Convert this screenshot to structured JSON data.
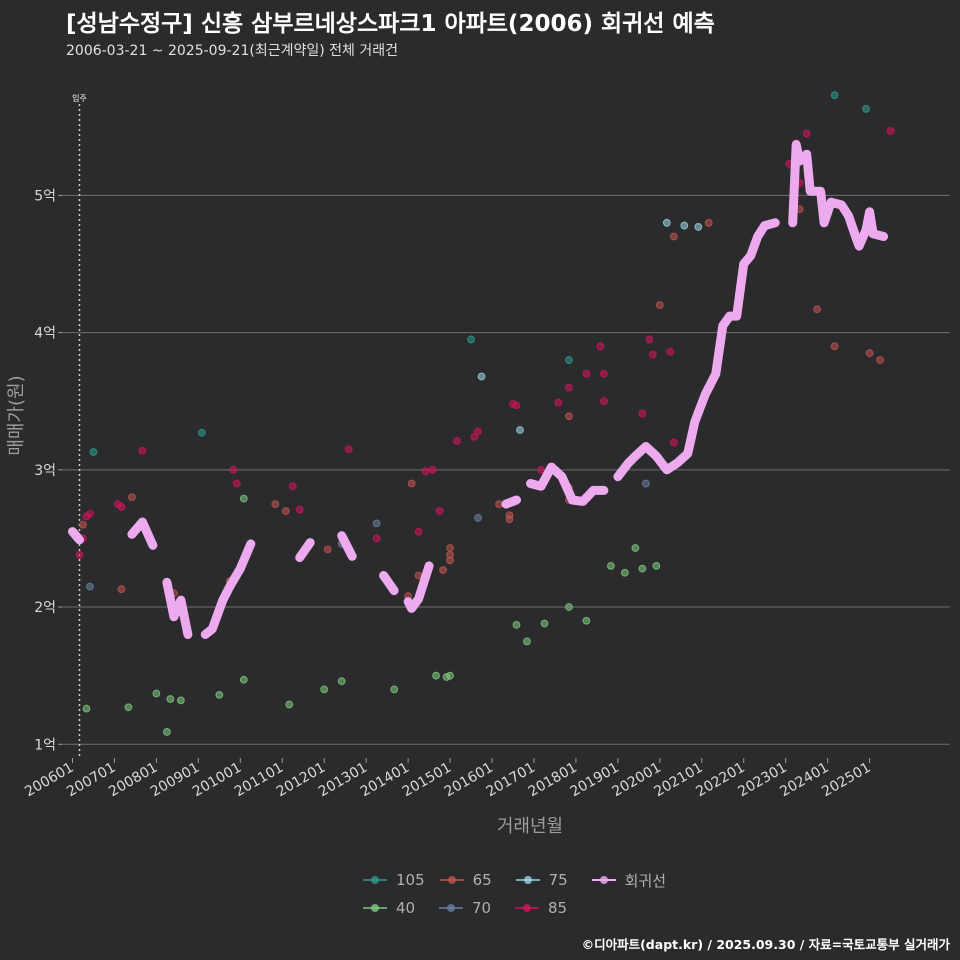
{
  "header": {
    "title": "[성남수정구] 신흥 삼부르네상스파크1 아파트(2006) 회귀선 예측",
    "subtitle": "2006-03-21 ~ 2025-09-21(최근계약일) 전체 거래건",
    "caption": "©디아파트(dapt.kr) / 2025.09.30 / 자료=국토교통부 실거래가"
  },
  "chart_data": {
    "type": "scatter",
    "title": "[성남수정구] 신흥 삼부르네상스파크1 아파트(2006) 회귀선 예측",
    "subtitle": "2006-03-21 ~ 2025-09-21(최근계약일) 전체 거래건",
    "xlabel": "거래년월",
    "ylabel": "매매가(원)",
    "xlim": [
      "2005-10",
      "2026-12"
    ],
    "ylim": [
      0.9,
      5.95
    ],
    "y_unit": "억",
    "x_ticks": [
      "200601",
      "200701",
      "200801",
      "200901",
      "201001",
      "201101",
      "201201",
      "201301",
      "201401",
      "201501",
      "201601",
      "201701",
      "201801",
      "201901",
      "202001",
      "202101",
      "202201",
      "202301",
      "202401",
      "202501"
    ],
    "y_ticks": [
      {
        "value": 1,
        "label": "1억"
      },
      {
        "value": 2,
        "label": "2억"
      },
      {
        "value": 3,
        "label": "3억"
      },
      {
        "value": 4,
        "label": "4억"
      },
      {
        "value": 5,
        "label": "5억"
      }
    ],
    "grid": true,
    "legend_position": "bottom",
    "annotation": {
      "x": "2006-03",
      "label": "입주"
    },
    "colors": {
      "105": "#2a9d8f",
      "40": "#7fc97f",
      "65": "#c1554f",
      "70": "#6a7fa3",
      "75": "#9fd6e3",
      "85": "#d4145a",
      "회귀선": "#eeaaee"
    },
    "legend": [
      {
        "key": "105",
        "label": "105",
        "kind": "point"
      },
      {
        "key": "40",
        "label": "40",
        "kind": "point"
      },
      {
        "key": "65",
        "label": "65",
        "kind": "point"
      },
      {
        "key": "70",
        "label": "70",
        "kind": "point"
      },
      {
        "key": "75",
        "label": "75",
        "kind": "point"
      },
      {
        "key": "85",
        "label": "85",
        "kind": "point"
      },
      {
        "key": "회귀선",
        "label": "회귀선",
        "kind": "line"
      }
    ],
    "series": [
      {
        "name": "105",
        "points": [
          {
            "x": "2006-07",
            "y": 3.13
          },
          {
            "x": "2015-07",
            "y": 3.95
          },
          {
            "x": "2024-03",
            "y": 5.73
          },
          {
            "x": "2024-12",
            "y": 5.63
          },
          {
            "x": "2017-11",
            "y": 3.8
          },
          {
            "x": "2009-02",
            "y": 3.27
          }
        ]
      },
      {
        "name": "40",
        "points": [
          {
            "x": "2006-05",
            "y": 1.26
          },
          {
            "x": "2007-05",
            "y": 1.27
          },
          {
            "x": "2008-01",
            "y": 1.37
          },
          {
            "x": "2008-05",
            "y": 1.33
          },
          {
            "x": "2008-08",
            "y": 1.32
          },
          {
            "x": "2008-04",
            "y": 1.09
          },
          {
            "x": "2009-07",
            "y": 1.36
          },
          {
            "x": "2010-02",
            "y": 1.47
          },
          {
            "x": "2011-03",
            "y": 1.29
          },
          {
            "x": "2012-01",
            "y": 1.4
          },
          {
            "x": "2012-06",
            "y": 1.46
          },
          {
            "x": "2013-09",
            "y": 1.4
          },
          {
            "x": "2014-09",
            "y": 1.5
          },
          {
            "x": "2014-12",
            "y": 1.49
          },
          {
            "x": "2015-01",
            "y": 1.5
          },
          {
            "x": "2016-08",
            "y": 1.87
          },
          {
            "x": "2016-11",
            "y": 1.75
          },
          {
            "x": "2017-04",
            "y": 1.88
          },
          {
            "x": "2017-11",
            "y": 2.0
          },
          {
            "x": "2018-04",
            "y": 1.9
          },
          {
            "x": "2018-11",
            "y": 2.3
          },
          {
            "x": "2019-03",
            "y": 2.25
          },
          {
            "x": "2019-06",
            "y": 2.43
          },
          {
            "x": "2019-08",
            "y": 2.28
          },
          {
            "x": "2019-12",
            "y": 2.3
          },
          {
            "x": "2010-02",
            "y": 2.79
          }
        ]
      },
      {
        "name": "65",
        "points": [
          {
            "x": "2006-04",
            "y": 2.6
          },
          {
            "x": "2007-03",
            "y": 2.13
          },
          {
            "x": "2007-06",
            "y": 2.8
          },
          {
            "x": "2008-06",
            "y": 2.1
          },
          {
            "x": "2008-06",
            "y": 2.0
          },
          {
            "x": "2009-10",
            "y": 2.19
          },
          {
            "x": "2010-11",
            "y": 2.75
          },
          {
            "x": "2011-02",
            "y": 2.7
          },
          {
            "x": "2012-02",
            "y": 2.42
          },
          {
            "x": "2014-01",
            "y": 2.08
          },
          {
            "x": "2014-04",
            "y": 2.23
          },
          {
            "x": "2014-02",
            "y": 2.9
          },
          {
            "x": "2014-11",
            "y": 2.27
          },
          {
            "x": "2015-01",
            "y": 2.43
          },
          {
            "x": "2015-01",
            "y": 2.38
          },
          {
            "x": "2015-01",
            "y": 2.34
          },
          {
            "x": "2016-03",
            "y": 2.75
          },
          {
            "x": "2016-06",
            "y": 2.64
          },
          {
            "x": "2016-06",
            "y": 2.67
          },
          {
            "x": "2017-06",
            "y": 3.0
          },
          {
            "x": "2017-11",
            "y": 2.87
          },
          {
            "x": "2017-11",
            "y": 2.78
          },
          {
            "x": "2017-11",
            "y": 3.39
          },
          {
            "x": "2020-01",
            "y": 4.2
          },
          {
            "x": "2020-05",
            "y": 4.7
          },
          {
            "x": "2021-03",
            "y": 4.8
          },
          {
            "x": "2023-10",
            "y": 4.17
          },
          {
            "x": "2024-03",
            "y": 3.9
          },
          {
            "x": "2025-01",
            "y": 3.85
          },
          {
            "x": "2025-04",
            "y": 3.8
          },
          {
            "x": "2023-05",
            "y": 4.9
          }
        ]
      },
      {
        "name": "70",
        "points": [
          {
            "x": "2006-06",
            "y": 2.15
          },
          {
            "x": "2013-04",
            "y": 2.61
          },
          {
            "x": "2015-09",
            "y": 2.65
          },
          {
            "x": "2019-09",
            "y": 2.9
          },
          {
            "x": "2012-06",
            "y": 2.46
          }
        ]
      },
      {
        "name": "75",
        "points": [
          {
            "x": "2016-09",
            "y": 3.29
          },
          {
            "x": "2020-03",
            "y": 4.8
          },
          {
            "x": "2020-08",
            "y": 4.78
          },
          {
            "x": "2020-12",
            "y": 4.77
          },
          {
            "x": "2015-10",
            "y": 3.68
          }
        ]
      },
      {
        "name": "85",
        "points": [
          {
            "x": "2006-05",
            "y": 2.66
          },
          {
            "x": "2006-06",
            "y": 2.68
          },
          {
            "x": "2006-04",
            "y": 2.5
          },
          {
            "x": "2006-03",
            "y": 2.38
          },
          {
            "x": "2007-02",
            "y": 2.75
          },
          {
            "x": "2007-03",
            "y": 2.73
          },
          {
            "x": "2007-09",
            "y": 3.14
          },
          {
            "x": "2009-11",
            "y": 3.0
          },
          {
            "x": "2009-12",
            "y": 2.9
          },
          {
            "x": "2011-04",
            "y": 2.88
          },
          {
            "x": "2011-06",
            "y": 2.71
          },
          {
            "x": "2012-08",
            "y": 3.15
          },
          {
            "x": "2013-04",
            "y": 2.5
          },
          {
            "x": "2014-04",
            "y": 2.55
          },
          {
            "x": "2014-06",
            "y": 2.99
          },
          {
            "x": "2014-08",
            "y": 3.0
          },
          {
            "x": "2014-10",
            "y": 2.7
          },
          {
            "x": "2015-03",
            "y": 3.21
          },
          {
            "x": "2015-08",
            "y": 3.24
          },
          {
            "x": "2015-09",
            "y": 3.28
          },
          {
            "x": "2016-07",
            "y": 3.48
          },
          {
            "x": "2016-08",
            "y": 3.47
          },
          {
            "x": "2017-03",
            "y": 3.0
          },
          {
            "x": "2017-08",
            "y": 3.49
          },
          {
            "x": "2017-11",
            "y": 3.6
          },
          {
            "x": "2018-04",
            "y": 3.7
          },
          {
            "x": "2018-08",
            "y": 3.9
          },
          {
            "x": "2018-09",
            "y": 3.5
          },
          {
            "x": "2018-09",
            "y": 3.7
          },
          {
            "x": "2019-10",
            "y": 3.95
          },
          {
            "x": "2019-11",
            "y": 3.84
          },
          {
            "x": "2020-04",
            "y": 3.86
          },
          {
            "x": "2020-05",
            "y": 3.2
          },
          {
            "x": "2019-08",
            "y": 3.41
          },
          {
            "x": "2023-04",
            "y": 5.38
          },
          {
            "x": "2023-07",
            "y": 5.45
          },
          {
            "x": "2023-05",
            "y": 5.09
          },
          {
            "x": "2025-07",
            "y": 5.47
          },
          {
            "x": "2023-02",
            "y": 5.23
          }
        ]
      }
    ],
    "regression": {
      "name": "회귀선",
      "points": [
        {
          "x": "2006-01",
          "y": 2.55
        },
        {
          "x": "2006-03",
          "y": 2.49
        },
        {
          "x": "2006-09",
          "y": 2.53
        },
        {
          "x": "2007-06",
          "y": 2.53
        },
        {
          "x": "2007-09",
          "y": 2.62
        },
        {
          "x": "2007-12",
          "y": 2.45
        },
        {
          "x": "2008-04",
          "y": 2.18
        },
        {
          "x": "2008-06",
          "y": 1.93
        },
        {
          "x": "2008-08",
          "y": 2.05
        },
        {
          "x": "2008-10",
          "y": 1.8
        },
        {
          "x": "2009-03",
          "y": 1.8
        },
        {
          "x": "2009-05",
          "y": 1.84
        },
        {
          "x": "2009-08",
          "y": 2.05
        },
        {
          "x": "2009-10",
          "y": 2.15
        },
        {
          "x": "2010-01",
          "y": 2.28
        },
        {
          "x": "2010-04",
          "y": 2.46
        },
        {
          "x": "2010-08",
          "y": 2.4
        },
        {
          "x": "2011-02",
          "y": 2.45
        },
        {
          "x": "2011-06",
          "y": 2.36
        },
        {
          "x": "2011-09",
          "y": 2.47
        },
        {
          "x": "2012-01",
          "y": 2.57
        },
        {
          "x": "2012-06",
          "y": 2.52
        },
        {
          "x": "2012-09",
          "y": 2.37
        },
        {
          "x": "2013-02",
          "y": 2.25
        },
        {
          "x": "2013-06",
          "y": 2.23
        },
        {
          "x": "2013-09",
          "y": 2.12
        },
        {
          "x": "2014-01",
          "y": 2.04
        },
        {
          "x": "2014-02",
          "y": 1.99
        },
        {
          "x": "2014-04",
          "y": 2.06
        },
        {
          "x": "2014-07",
          "y": 2.3
        },
        {
          "x": "2014-12",
          "y": 2.45
        },
        {
          "x": "2015-04",
          "y": 2.41
        },
        {
          "x": "2015-08",
          "y": 2.45
        },
        {
          "x": "2016-01",
          "y": 2.6
        },
        {
          "x": "2016-05",
          "y": 2.75
        },
        {
          "x": "2016-08",
          "y": 2.78
        },
        {
          "x": "2016-12",
          "y": 2.9
        },
        {
          "x": "2017-03",
          "y": 2.88
        },
        {
          "x": "2017-06",
          "y": 3.02
        },
        {
          "x": "2017-09",
          "y": 2.95
        },
        {
          "x": "2017-12",
          "y": 2.78
        },
        {
          "x": "2018-03",
          "y": 2.77
        },
        {
          "x": "2018-06",
          "y": 2.85
        },
        {
          "x": "2018-09",
          "y": 2.85
        },
        {
          "x": "2019-01",
          "y": 2.95
        },
        {
          "x": "2019-04",
          "y": 3.05
        },
        {
          "x": "2019-06",
          "y": 3.1
        },
        {
          "x": "2019-09",
          "y": 3.17
        },
        {
          "x": "2019-12",
          "y": 3.1
        },
        {
          "x": "2020-03",
          "y": 3.0
        },
        {
          "x": "2020-06",
          "y": 3.05
        },
        {
          "x": "2020-09",
          "y": 3.12
        },
        {
          "x": "2020-11",
          "y": 3.35
        },
        {
          "x": "2021-02",
          "y": 3.55
        },
        {
          "x": "2021-05",
          "y": 3.7
        },
        {
          "x": "2021-07",
          "y": 4.05
        },
        {
          "x": "2021-09",
          "y": 4.12
        },
        {
          "x": "2021-11",
          "y": 4.12
        },
        {
          "x": "2022-01",
          "y": 4.5
        },
        {
          "x": "2022-03",
          "y": 4.56
        },
        {
          "x": "2022-05",
          "y": 4.7
        },
        {
          "x": "2022-07",
          "y": 4.78
        },
        {
          "x": "2022-10",
          "y": 4.8
        },
        {
          "x": "2023-03",
          "y": 4.8
        },
        {
          "x": "2023-04",
          "y": 5.37
        },
        {
          "x": "2023-05",
          "y": 5.25
        },
        {
          "x": "2023-07",
          "y": 5.3
        },
        {
          "x": "2023-08",
          "y": 5.03
        },
        {
          "x": "2023-11",
          "y": 5.03
        },
        {
          "x": "2023-12",
          "y": 4.8
        },
        {
          "x": "2024-02",
          "y": 4.95
        },
        {
          "x": "2024-05",
          "y": 4.93
        },
        {
          "x": "2024-07",
          "y": 4.85
        },
        {
          "x": "2024-09",
          "y": 4.7
        },
        {
          "x": "2024-10",
          "y": 4.63
        },
        {
          "x": "2024-12",
          "y": 4.75
        },
        {
          "x": "2025-01",
          "y": 4.88
        },
        {
          "x": "2025-02",
          "y": 4.72
        },
        {
          "x": "2025-05",
          "y": 4.7
        },
        {
          "x": "2025-09",
          "y": 4.7
        }
      ]
    }
  }
}
